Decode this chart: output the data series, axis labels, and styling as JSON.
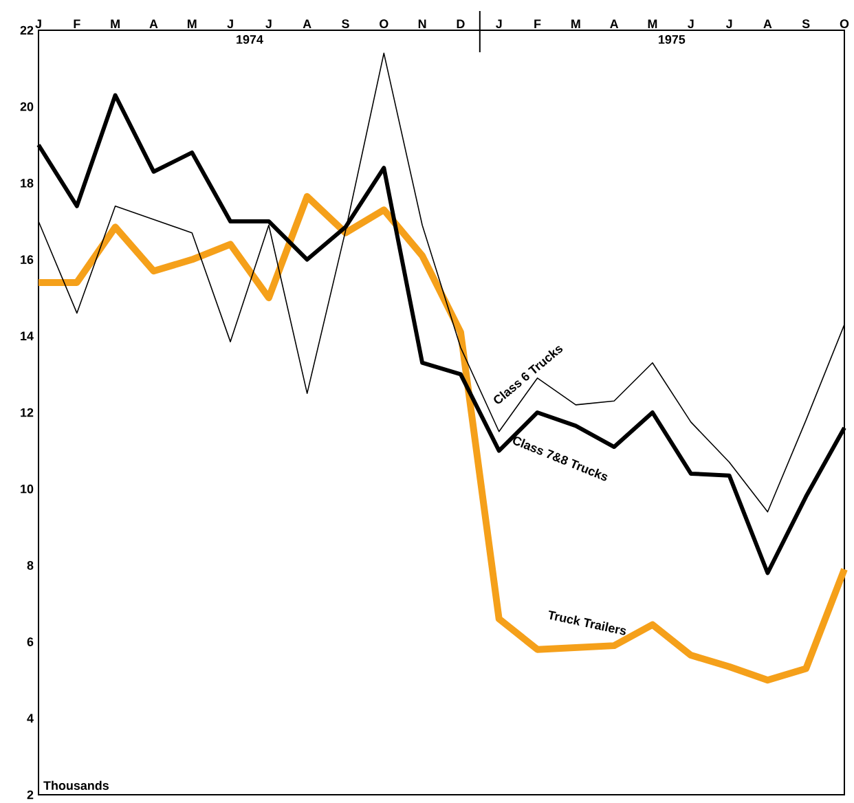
{
  "chart_data": {
    "type": "line",
    "categories": [
      "J",
      "F",
      "M",
      "A",
      "M",
      "J",
      "J",
      "A",
      "S",
      "O",
      "N",
      "D",
      "J",
      "F",
      "M",
      "A",
      "M",
      "J",
      "J",
      "A",
      "S",
      "O"
    ],
    "series": [
      {
        "name": "Class 6 Trucks",
        "color": "#000000",
        "values": [
          17.0,
          14.6,
          17.4,
          17.05,
          16.7,
          13.85,
          16.9,
          12.5,
          16.75,
          21.4,
          16.9,
          13.7,
          11.5,
          12.9,
          12.2,
          12.3,
          13.3,
          11.75,
          10.7,
          9.4,
          11.8,
          14.3
        ]
      },
      {
        "name": "Class 7&8 Trucks",
        "color": "#000000",
        "values": [
          19.0,
          17.4,
          20.3,
          18.3,
          18.8,
          17.0,
          17.0,
          16.0,
          16.85,
          18.4,
          13.3,
          13.0,
          11.0,
          12.0,
          11.65,
          11.1,
          12.0,
          10.4,
          10.35,
          7.8,
          9.8,
          11.6
        ]
      },
      {
        "name": "Truck Trailers",
        "color": "#f5a01a",
        "values": [
          15.4,
          15.4,
          16.85,
          15.7,
          16.0,
          16.4,
          15.0,
          17.65,
          16.7,
          17.3,
          16.1,
          14.1,
          6.6,
          5.8,
          5.85,
          5.9,
          6.45,
          5.65,
          5.35,
          5.0,
          5.3,
          7.9
        ]
      }
    ],
    "ylim": [
      2,
      22
    ],
    "yticks": [
      2,
      4,
      6,
      8,
      10,
      12,
      14,
      16,
      18,
      20,
      22
    ],
    "annotations": [
      "1974",
      "1975",
      "Thousands"
    ],
    "grid": false,
    "legend": false,
    "marker": "none",
    "line_style": "solid"
  }
}
